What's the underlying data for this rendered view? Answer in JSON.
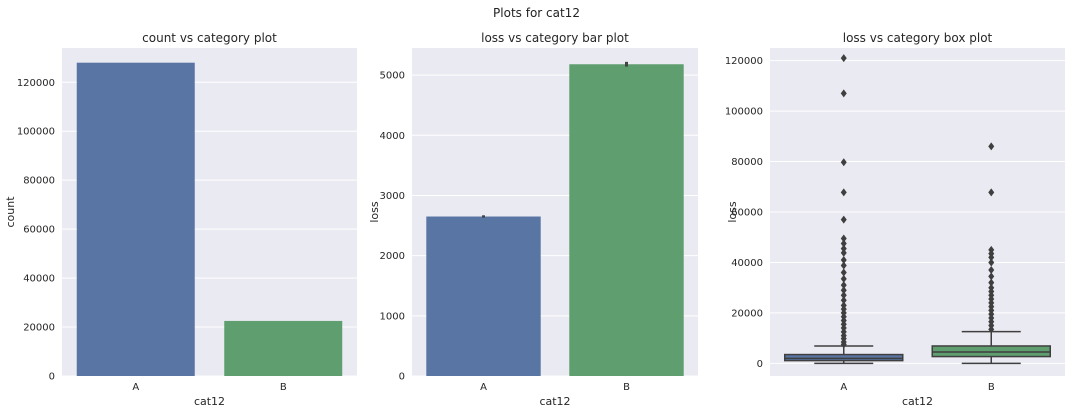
{
  "figure": {
    "suptitle": "Plots for cat12"
  },
  "colors": {
    "A": "#5975a4",
    "B": "#5f9e6e",
    "background": "#eaeaf2",
    "grid": "#ffffff",
    "error": "#444444"
  },
  "chart_data": [
    {
      "type": "bar",
      "title": "count vs category plot",
      "xlabel": "cat12",
      "ylabel": "count",
      "categories": [
        "A",
        "B"
      ],
      "values": [
        128000,
        22500
      ],
      "ylim": [
        0,
        134000
      ],
      "yticks": [
        0,
        20000,
        40000,
        60000,
        80000,
        100000,
        120000
      ],
      "grid": true
    },
    {
      "type": "bar",
      "title": "loss vs category bar plot",
      "xlabel": "cat12",
      "ylabel": "loss",
      "categories": [
        "A",
        "B"
      ],
      "values": [
        2650,
        5180
      ],
      "errors": [
        [
          2630,
          2670
        ],
        [
          5140,
          5220
        ]
      ],
      "ylim": [
        0,
        5450
      ],
      "yticks": [
        0,
        1000,
        2000,
        3000,
        4000,
        5000
      ],
      "grid": true
    },
    {
      "type": "box",
      "title": "loss vs category box plot",
      "xlabel": "cat12",
      "ylabel": "loss",
      "categories": [
        "A",
        "B"
      ],
      "boxes": [
        {
          "category": "A",
          "whisker_low": 0,
          "q1": 1100,
          "median": 2000,
          "q3": 3500,
          "whisker_high": 6900,
          "fliers": [
            121000,
            107000,
            79700,
            67800,
            57000,
            49500,
            47500,
            45500,
            43800,
            41000,
            38800,
            36000,
            33500,
            31000,
            29000,
            27000,
            25000,
            23000,
            21500,
            20000,
            18500,
            17000,
            15500,
            14000,
            12500,
            11000,
            9800,
            8500,
            7500
          ]
        },
        {
          "category": "B",
          "whisker_low": 0,
          "q1": 2700,
          "median": 4500,
          "q3": 6900,
          "whisker_high": 12600,
          "fliers": [
            86000,
            67800,
            45000,
            43500,
            42000,
            40000,
            37000,
            34500,
            32000,
            30000,
            28500,
            27000,
            25500,
            24000,
            22500,
            21000,
            19500,
            18000,
            16500,
            15000,
            13500
          ]
        }
      ],
      "ylim": [
        -5000,
        125000
      ],
      "yticks": [
        0,
        20000,
        40000,
        60000,
        80000,
        100000,
        120000
      ],
      "grid": true
    }
  ]
}
